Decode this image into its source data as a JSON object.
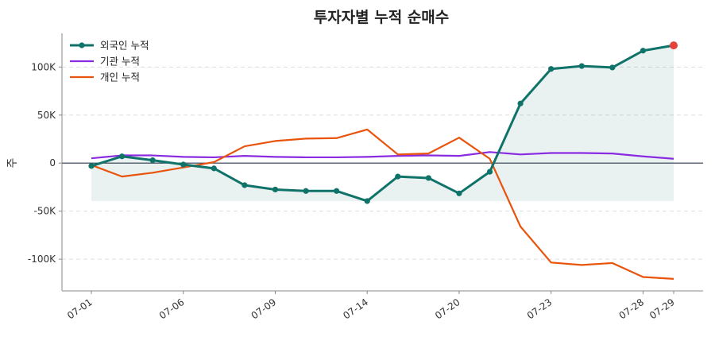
{
  "chart_data": {
    "type": "line",
    "title": "투자자별 누적 순매수",
    "ylabel": "주",
    "xlabel": "",
    "ylim": [
      -133000,
      135000
    ],
    "yticks": [
      100000,
      50000,
      0,
      -50000,
      -100000
    ],
    "ytick_labels": [
      "100K",
      "50K",
      "0",
      "-50K",
      "-100K"
    ],
    "x_tick_labels": [
      "07-01",
      "07-06",
      "07-09",
      "07-14",
      "07-20",
      "07-23",
      "07-28",
      "07-29"
    ],
    "x_tick_index": [
      0,
      3,
      6,
      9,
      12,
      15,
      18,
      19
    ],
    "grid": "horizontal dashed",
    "legend_position": "top-left",
    "colors": {
      "foreign": "#0f7369",
      "institution": "#8a2be2",
      "individual": "#e8540c",
      "highlight": "#e8413a",
      "fill": "#0f7369",
      "zero_line": "#2b3a4a"
    },
    "series": [
      {
        "name": "외국인 누적",
        "values": [
          -3000,
          7000,
          3000,
          -1500,
          -5500,
          -23000,
          -27500,
          -29000,
          -29000,
          -39500,
          -14000,
          -15500,
          -31500,
          -9000,
          62000,
          98000,
          101000,
          99500,
          117000,
          122500
        ]
      },
      {
        "name": "기관 누적",
        "values": [
          5000,
          8000,
          8000,
          6500,
          6000,
          7500,
          6500,
          6000,
          6000,
          6500,
          7500,
          8000,
          7500,
          11500,
          9000,
          10500,
          10500,
          10000,
          7000,
          4500
        ]
      },
      {
        "name": "개인 누적",
        "values": [
          -2000,
          -14000,
          -10000,
          -4500,
          1000,
          17500,
          23000,
          25500,
          26000,
          35000,
          9000,
          10000,
          26500,
          4500,
          -66000,
          -103500,
          -106000,
          -104000,
          -118500,
          -120500
        ]
      }
    ]
  }
}
